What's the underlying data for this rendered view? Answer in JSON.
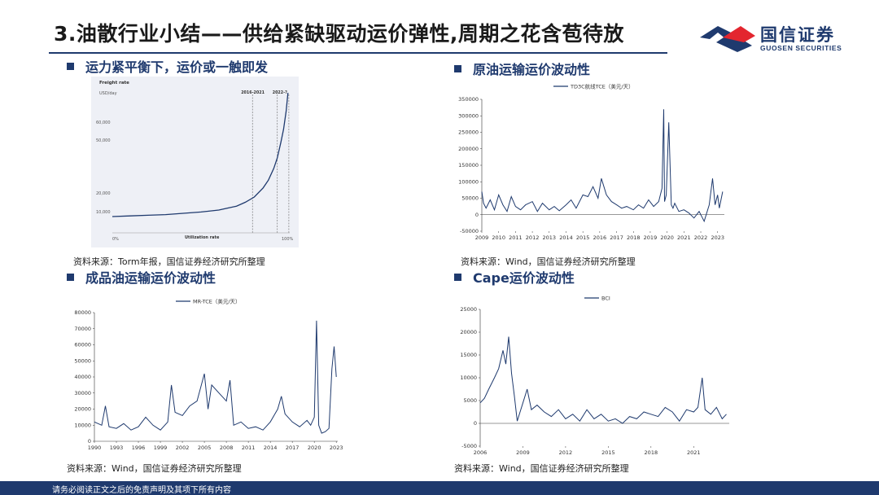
{
  "header": {
    "title": "3.油散行业小结——供给紧缺驱动运价弹性,周期之花含苞待放",
    "logo_cn": "国信证券",
    "logo_en": "GUOSEN SECURITIES"
  },
  "sections": [
    {
      "heading": "运力紧平衡下，运价或一触即发",
      "source": "资料来源：Torm年报，国信证券经济研究所整理"
    },
    {
      "heading": "原油运输运价波动性",
      "source": "资料来源：Wind，国信证券经济研究所整理"
    },
    {
      "heading": "成品油运输运价波动性",
      "source": "资料来源：Wind，国信证券经济研究所整理"
    },
    {
      "heading": "Cape运价波动性",
      "source": "资料来源：Wind，国信证券经济研究所整理"
    }
  ],
  "footer": {
    "disclaimer": "请务必阅读正文之后的免责声明及其项下所有内容"
  },
  "colors": {
    "navy": "#1f3a6e",
    "red": "#e3262f",
    "panel_bg": "#eef0f6",
    "line": "#1f3a6e"
  },
  "chart_data": [
    {
      "type": "line",
      "title": "Freight rate",
      "ylabel": "USD/day",
      "xlabel": "Utilization rate",
      "x_tick_labels": [
        "0%",
        "100%"
      ],
      "y_tick_labels": [
        "10,000",
        "20,000",
        "50,000",
        "60,000"
      ],
      "annotations": [
        "2016-2021",
        "2022-?"
      ],
      "x": [
        0,
        10,
        20,
        30,
        40,
        50,
        60,
        70,
        75,
        80,
        85,
        88,
        91,
        93,
        95,
        96.5,
        98,
        99
      ],
      "y": [
        0.05,
        0.055,
        0.06,
        0.065,
        0.075,
        0.085,
        0.1,
        0.13,
        0.16,
        0.2,
        0.27,
        0.33,
        0.42,
        0.5,
        0.62,
        0.72,
        0.86,
        1.0
      ]
    },
    {
      "type": "line",
      "legend": "TD3C航线TCE（美元/天）",
      "ylim": [
        -50000,
        350000
      ],
      "yticks": [
        "350000",
        "300000",
        "250000",
        "200000",
        "150000",
        "100000",
        "50000",
        "0",
        "-50000"
      ],
      "xticks": [
        "2009",
        "2010",
        "2011",
        "2012",
        "2013",
        "2014",
        "2015",
        "2016",
        "2017",
        "2018",
        "2019",
        "2020",
        "2021",
        "2022",
        "2023"
      ],
      "x": [
        2009.0,
        2009.1,
        2009.25,
        2009.5,
        2009.75,
        2010.0,
        2010.25,
        2010.5,
        2010.75,
        2011.0,
        2011.3,
        2011.6,
        2012.0,
        2012.3,
        2012.6,
        2013.0,
        2013.3,
        2013.6,
        2014.0,
        2014.3,
        2014.6,
        2015.0,
        2015.3,
        2015.6,
        2015.9,
        2016.1,
        2016.4,
        2016.7,
        2017.0,
        2017.3,
        2017.6,
        2018.0,
        2018.3,
        2018.6,
        2018.9,
        2019.2,
        2019.5,
        2019.7,
        2019.8,
        2019.85,
        2019.95,
        2020.1,
        2020.25,
        2020.35,
        2020.45,
        2020.7,
        2021.0,
        2021.3,
        2021.6,
        2021.9,
        2022.2,
        2022.5,
        2022.7,
        2022.85,
        2023.0,
        2023.1,
        2023.3
      ],
      "y": [
        70000,
        35000,
        20000,
        45000,
        15000,
        60000,
        30000,
        10000,
        55000,
        25000,
        15000,
        30000,
        40000,
        10000,
        35000,
        15000,
        25000,
        12000,
        30000,
        45000,
        20000,
        60000,
        55000,
        85000,
        50000,
        110000,
        60000,
        40000,
        30000,
        20000,
        25000,
        15000,
        30000,
        20000,
        45000,
        25000,
        40000,
        80000,
        320000,
        40000,
        60000,
        280000,
        30000,
        20000,
        35000,
        10000,
        15000,
        5000,
        -10000,
        10000,
        -20000,
        30000,
        110000,
        30000,
        60000,
        20000,
        70000
      ]
    },
    {
      "type": "line",
      "legend": "MR-TCE（美元/天）",
      "ylim": [
        0,
        80000
      ],
      "yticks": [
        "80000",
        "70000",
        "60000",
        "50000",
        "40000",
        "30000",
        "20000",
        "10000",
        "0"
      ],
      "xticks": [
        "1990",
        "1993",
        "1996",
        "1999",
        "2002",
        "2005",
        "2008",
        "2011",
        "2014",
        "2017",
        "2020",
        "2023"
      ],
      "x": [
        1990,
        1991,
        1991.5,
        1992,
        1993,
        1994,
        1995,
        1996,
        1997,
        1998,
        1999,
        2000,
        2000.5,
        2001,
        2002,
        2003,
        2004,
        2005,
        2005.5,
        2006,
        2007,
        2008,
        2008.5,
        2009,
        2010,
        2011,
        2012,
        2013,
        2014,
        2015,
        2015.5,
        2016,
        2017,
        2018,
        2019,
        2019.5,
        2020,
        2020.3,
        2020.6,
        2021,
        2021.5,
        2022,
        2022.4,
        2022.7,
        2023
      ],
      "y": [
        12000,
        10000,
        22000,
        9000,
        8000,
        11000,
        7000,
        9000,
        15000,
        10000,
        7000,
        12000,
        35000,
        18000,
        16000,
        22000,
        25000,
        42000,
        20000,
        35000,
        30000,
        25000,
        38000,
        10000,
        12000,
        8000,
        9000,
        7000,
        12000,
        20000,
        28000,
        17000,
        12000,
        9000,
        13000,
        10000,
        15000,
        75000,
        10000,
        5000,
        6000,
        8000,
        45000,
        59000,
        40000
      ]
    },
    {
      "type": "line",
      "legend": "BCI",
      "ylim": [
        -5000,
        25000
      ],
      "yticks": [
        "25000",
        "20000",
        "15000",
        "10000",
        "5000",
        "0",
        "-5000"
      ],
      "xticks": [
        "2006",
        "2009",
        "2012",
        "2015",
        "2018",
        "2021"
      ],
      "x": [
        2006.0,
        2006.3,
        2006.6,
        2007.0,
        2007.3,
        2007.6,
        2007.8,
        2008.0,
        2008.2,
        2008.4,
        2008.6,
        2008.8,
        2009.0,
        2009.3,
        2009.6,
        2010.0,
        2010.5,
        2011.0,
        2011.5,
        2012.0,
        2012.5,
        2013.0,
        2013.5,
        2014.0,
        2014.5,
        2015.0,
        2015.5,
        2016.0,
        2016.5,
        2017.0,
        2017.5,
        2018.0,
        2018.5,
        2019.0,
        2019.5,
        2020.0,
        2020.5,
        2021.0,
        2021.3,
        2021.6,
        2021.8,
        2022.2,
        2022.6,
        2023.0,
        2023.3
      ],
      "y": [
        4500,
        5500,
        7500,
        10000,
        12000,
        16000,
        13000,
        19000,
        11000,
        6000,
        500,
        2500,
        4500,
        7500,
        3000,
        4000,
        2500,
        1500,
        3000,
        1000,
        2000,
        500,
        3000,
        1000,
        2000,
        500,
        1000,
        0,
        1500,
        1000,
        2500,
        2000,
        1500,
        3500,
        2500,
        500,
        3000,
        2500,
        3500,
        10000,
        3000,
        2000,
        3500,
        1000,
        2000
      ]
    }
  ]
}
